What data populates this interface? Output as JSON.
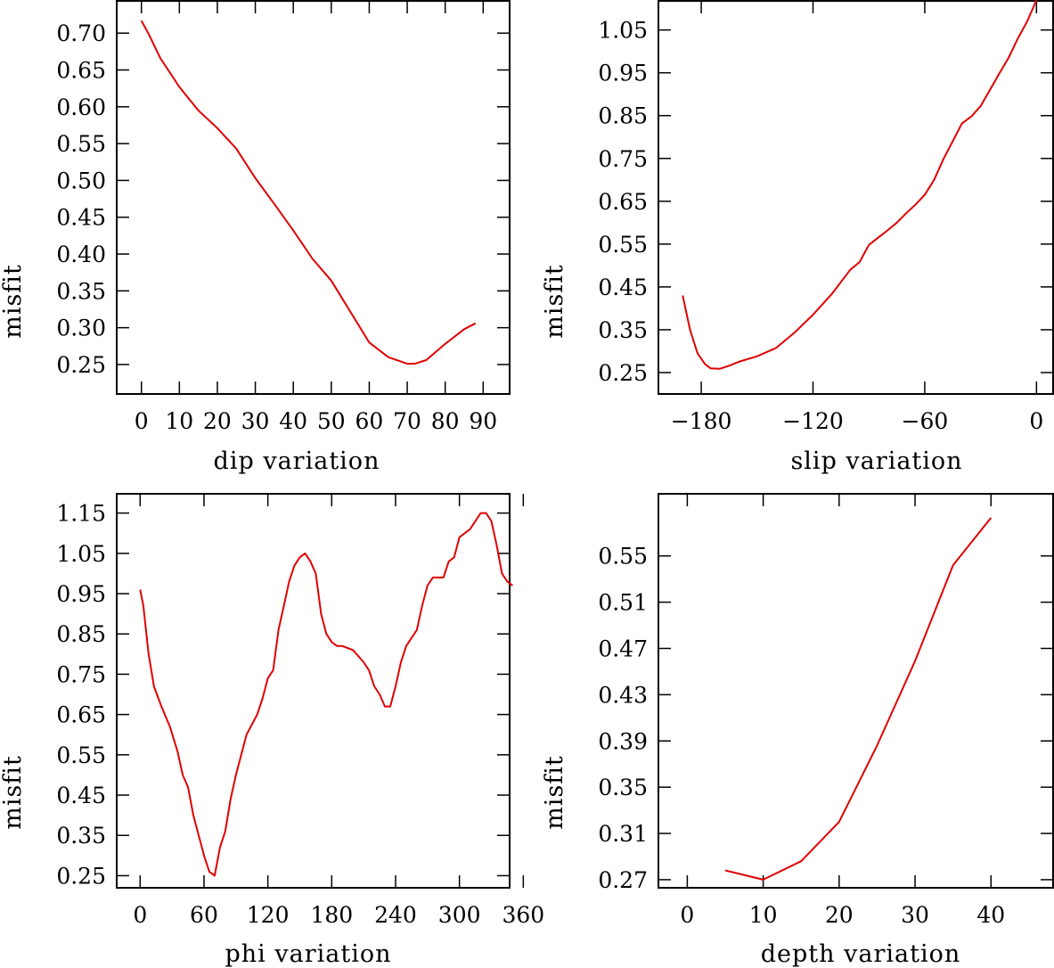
{
  "chart_data": [
    {
      "type": "line",
      "xlabel": "dip variation",
      "ylabel": "misfit",
      "xlim": [
        -6.5,
        97.2
      ],
      "ylim": [
        0.21,
        0.745
      ],
      "xticks": [
        0,
        10,
        20,
        30,
        40,
        50,
        60,
        70,
        80,
        90
      ],
      "yticks": [
        0.25,
        0.3,
        0.35,
        0.4,
        0.45,
        0.5,
        0.55,
        0.6,
        0.65,
        0.7
      ],
      "ytick_labels": [
        "0.25",
        "0.30",
        "0.35",
        "0.40",
        "0.45",
        "0.50",
        "0.55",
        "0.60",
        "0.65",
        "0.70"
      ],
      "x": [
        0,
        2,
        5,
        10,
        15,
        20,
        25,
        30,
        35,
        40,
        45,
        50,
        55,
        60,
        65,
        70,
        72,
        75,
        80,
        85,
        88
      ],
      "y": [
        0.717,
        0.698,
        0.666,
        0.627,
        0.595,
        0.571,
        0.543,
        0.503,
        0.468,
        0.432,
        0.394,
        0.364,
        0.322,
        0.28,
        0.26,
        0.251,
        0.251,
        0.256,
        0.278,
        0.298,
        0.306
      ]
    },
    {
      "type": "line",
      "xlabel": "slip variation",
      "ylabel": "misfit",
      "xlim": [
        -203,
        9.4
      ],
      "ylim": [
        0.2,
        1.12
      ],
      "xticks": [
        -180,
        -120,
        -60,
        0
      ],
      "xtick_labels": [
        "−180",
        "−120",
        "−60",
        "0"
      ],
      "yticks": [
        0.25,
        0.35,
        0.45,
        0.55,
        0.65,
        0.75,
        0.85,
        0.95,
        1.05
      ],
      "ytick_labels": [
        "0.25",
        "0.35",
        "0.45",
        "0.55",
        "0.65",
        "0.75",
        "0.85",
        "0.95",
        "1.05"
      ],
      "x": [
        -190,
        -186,
        -182,
        -178,
        -175,
        -170,
        -165,
        -160,
        -150,
        -140,
        -130,
        -120,
        -110,
        -100,
        -95,
        -90,
        -85,
        -80,
        -75,
        -70,
        -65,
        -60,
        -55,
        -50,
        -45,
        -40,
        -35,
        -30,
        -25,
        -20,
        -15,
        -10,
        -5,
        0
      ],
      "y": [
        0.43,
        0.35,
        0.295,
        0.27,
        0.26,
        0.259,
        0.266,
        0.275,
        0.288,
        0.307,
        0.343,
        0.385,
        0.433,
        0.49,
        0.508,
        0.548,
        0.565,
        0.582,
        0.6,
        0.622,
        0.642,
        0.665,
        0.7,
        0.748,
        0.79,
        0.832,
        0.848,
        0.872,
        0.91,
        0.948,
        0.985,
        1.03,
        1.07,
        1.12
      ]
    },
    {
      "type": "line",
      "xlabel": "phi variation",
      "ylabel": "misfit",
      "xlim": [
        -22,
        348
      ],
      "ylim": [
        0.22,
        1.2
      ],
      "xticks": [
        0,
        60,
        120,
        180,
        240,
        300,
        360
      ],
      "yticks": [
        0.25,
        0.35,
        0.45,
        0.55,
        0.65,
        0.75,
        0.85,
        0.95,
        1.05,
        1.15
      ],
      "ytick_labels": [
        "0.25",
        "0.35",
        "0.45",
        "0.55",
        "0.65",
        "0.75",
        "0.85",
        "0.95",
        "1.05",
        "1.15"
      ],
      "x": [
        0,
        3,
        8,
        13,
        20,
        28,
        35,
        40,
        45,
        50,
        55,
        60,
        65,
        70,
        75,
        80,
        85,
        90,
        95,
        100,
        110,
        115,
        120,
        125,
        130,
        135,
        140,
        145,
        150,
        155,
        160,
        165,
        170,
        175,
        180,
        185,
        190,
        200,
        210,
        215,
        220,
        225,
        230,
        235,
        240,
        245,
        250,
        255,
        260,
        265,
        270,
        275,
        280,
        285,
        290,
        295,
        300,
        305,
        310,
        315,
        320,
        325,
        330,
        335,
        340,
        345,
        350
      ],
      "y": [
        0.96,
        0.92,
        0.8,
        0.72,
        0.67,
        0.62,
        0.56,
        0.5,
        0.47,
        0.4,
        0.35,
        0.3,
        0.26,
        0.25,
        0.32,
        0.36,
        0.44,
        0.5,
        0.55,
        0.6,
        0.65,
        0.69,
        0.74,
        0.76,
        0.86,
        0.92,
        0.98,
        1.02,
        1.04,
        1.05,
        1.03,
        1.0,
        0.9,
        0.85,
        0.83,
        0.82,
        0.82,
        0.81,
        0.78,
        0.76,
        0.72,
        0.7,
        0.67,
        0.67,
        0.72,
        0.78,
        0.82,
        0.84,
        0.86,
        0.92,
        0.97,
        0.99,
        0.99,
        0.99,
        1.03,
        1.04,
        1.09,
        1.1,
        1.11,
        1.13,
        1.15,
        1.15,
        1.13,
        1.07,
        1.0,
        0.98,
        0.97
      ]
    },
    {
      "type": "line",
      "xlabel": "depth variation",
      "ylabel": "misfit",
      "xlim": [
        -3.8,
        48.3
      ],
      "ylim": [
        0.263,
        0.6045
      ],
      "xticks": [
        0,
        10,
        20,
        30,
        40
      ],
      "yticks": [
        0.27,
        0.31,
        0.35,
        0.39,
        0.43,
        0.47,
        0.51,
        0.55
      ],
      "ytick_labels": [
        "0.27",
        "0.31",
        "0.35",
        "0.39",
        "0.43",
        "0.47",
        "0.51",
        "0.55"
      ],
      "x": [
        5,
        10,
        15,
        20,
        25,
        30,
        35,
        40
      ],
      "y": [
        0.278,
        0.27,
        0.286,
        0.32,
        0.386,
        0.459,
        0.542,
        0.583
      ]
    }
  ]
}
